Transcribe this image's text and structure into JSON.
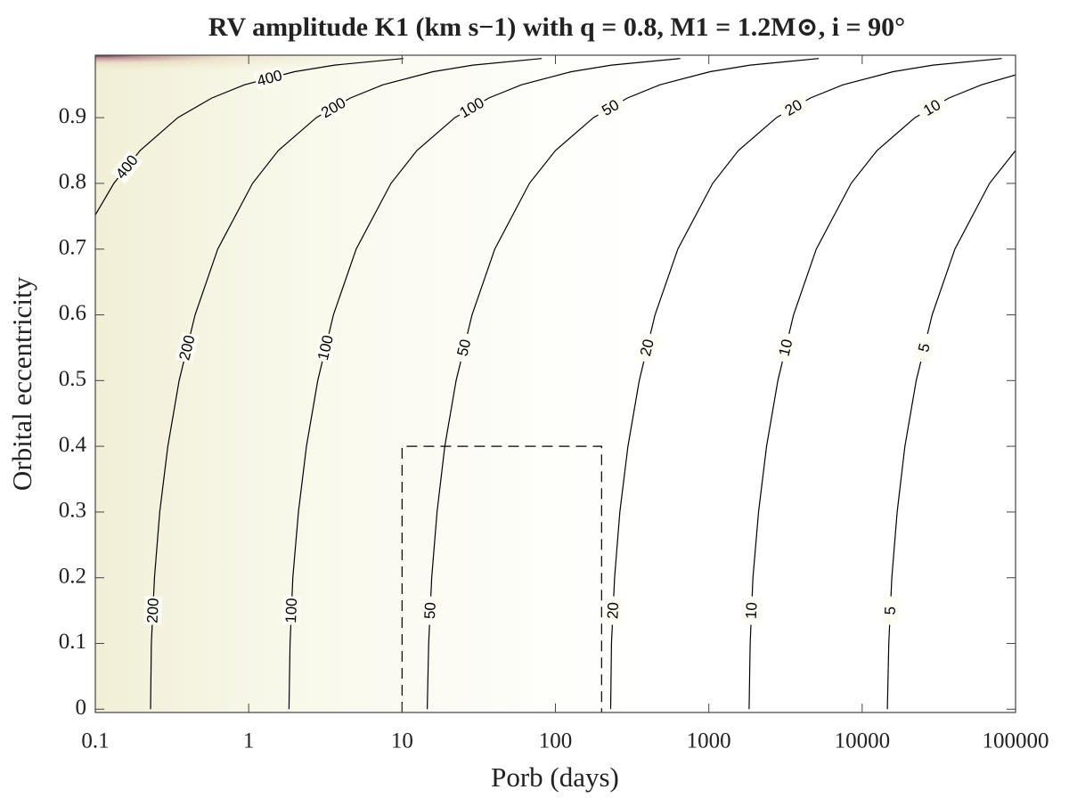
{
  "chart_data": {
    "type": "contour",
    "title": "RV amplitude K1 (km s−1) with q = 0.8, M1 = 1.2M⊙, i = 90°",
    "x_label": "Porb (days)",
    "y_label": "Orbital eccentricity",
    "xscale": "log",
    "xlim": [
      0.1,
      100000
    ],
    "ylim": [
      -0.005,
      0.995
    ],
    "xticks": [
      0.1,
      1,
      10,
      100,
      1000,
      10000,
      100000
    ],
    "yticks": [
      0,
      0.1,
      0.2,
      0.3,
      0.4,
      0.5,
      0.6,
      0.7,
      0.8,
      0.9
    ],
    "color": "#000000",
    "contours": [
      {
        "level": 400,
        "x": [
          0.1,
          0.132,
          0.196,
          0.345,
          0.576,
          0.94,
          1.99,
          3.63,
          10.2
        ],
        "y": [
          0.752,
          0.8,
          0.85,
          0.9,
          0.93,
          0.95,
          0.97,
          0.98,
          0.99
        ]
      },
      {
        "level": 200,
        "x": [
          0.229,
          0.232,
          0.243,
          0.263,
          0.297,
          0.352,
          0.447,
          0.628,
          1.06,
          1.56,
          2.76,
          4.61,
          7.51,
          15.9,
          29.0,
          81.4
        ],
        "y": [
          0,
          0.1,
          0.2,
          0.3,
          0.4,
          0.5,
          0.6,
          0.7,
          0.8,
          0.85,
          0.9,
          0.93,
          0.95,
          0.97,
          0.98,
          0.99
        ]
      },
      {
        "level": 100,
        "x": [
          1.83,
          1.86,
          1.94,
          2.11,
          2.38,
          2.82,
          3.57,
          5.02,
          8.47,
          12.5,
          22.1,
          36.8,
          60.1,
          127,
          232,
          651
        ],
        "y": [
          0,
          0.1,
          0.2,
          0.3,
          0.4,
          0.5,
          0.6,
          0.7,
          0.8,
          0.85,
          0.9,
          0.93,
          0.95,
          0.97,
          0.98,
          0.99
        ]
      },
      {
        "level": 50,
        "x": [
          14.6,
          14.9,
          15.6,
          16.9,
          19.0,
          22.5,
          28.6,
          40.2,
          67.7,
          100,
          177,
          295,
          481,
          1020,
          1860,
          5210
        ],
        "y": [
          0,
          0.1,
          0.2,
          0.3,
          0.4,
          0.5,
          0.6,
          0.7,
          0.8,
          0.85,
          0.9,
          0.93,
          0.95,
          0.97,
          0.98,
          0.99
        ]
      },
      {
        "level": 20,
        "x": [
          229,
          232,
          243,
          263,
          297,
          352,
          446,
          628,
          1060,
          1560,
          2760,
          4600,
          7510,
          15900,
          29000,
          81400
        ],
        "y": [
          0,
          0.1,
          0.2,
          0.3,
          0.4,
          0.5,
          0.6,
          0.7,
          0.8,
          0.85,
          0.9,
          0.93,
          0.95,
          0.97,
          0.98,
          0.99
        ]
      },
      {
        "level": 10,
        "x": [
          1830,
          1860,
          1940,
          2110,
          2380,
          2820,
          3570,
          5020,
          8470,
          12500,
          22100,
          36800,
          60100,
          100000
        ],
        "y": [
          0,
          0.1,
          0.2,
          0.3,
          0.4,
          0.5,
          0.6,
          0.7,
          0.8,
          0.85,
          0.9,
          0.93,
          0.95,
          0.965
        ]
      },
      {
        "level": 5,
        "x": [
          14600,
          14900,
          15600,
          16900,
          19000,
          22500,
          28600,
          40200,
          67700,
          100000
        ],
        "y": [
          0,
          0.1,
          0.2,
          0.3,
          0.4,
          0.5,
          0.6,
          0.7,
          0.8,
          0.85
        ]
      }
    ],
    "box": {
      "x": [
        10,
        200
      ],
      "y": [
        0,
        0.4
      ]
    }
  }
}
